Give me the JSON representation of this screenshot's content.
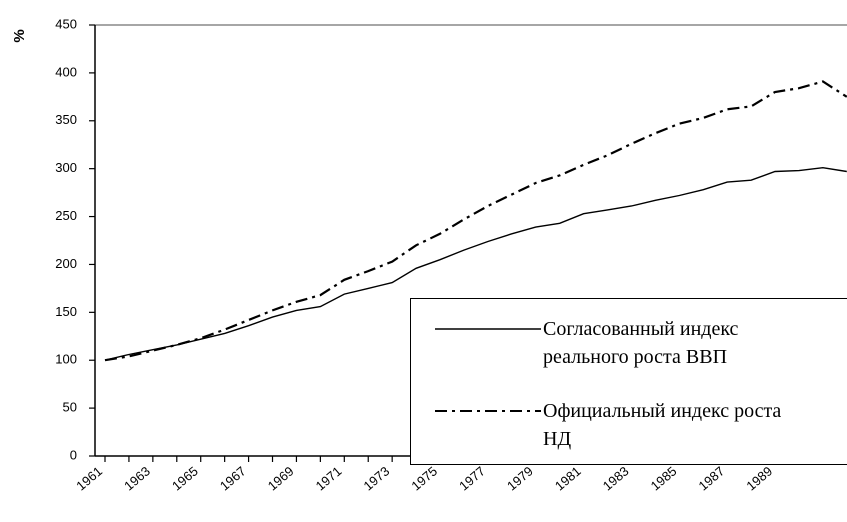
{
  "chart_data": {
    "type": "line",
    "y_label": "%",
    "categories": [
      "1961",
      null,
      "1963",
      null,
      "1965",
      null,
      "1967",
      null,
      "1969",
      null,
      "1971",
      null,
      "1973",
      null,
      "1975",
      null,
      "1977",
      null,
      "1979",
      null,
      "1981",
      null,
      "1983",
      null,
      "1985",
      null,
      "1987",
      null,
      "1989",
      null,
      null,
      null
    ],
    "series": [
      {
        "name": "Согласованный индекс реального роста ВВП",
        "color": "#000000",
        "dash": "solid",
        "values": [
          100,
          106,
          111,
          116,
          122,
          128,
          136,
          145,
          152,
          156,
          169,
          175,
          181,
          196,
          205,
          215,
          224,
          232,
          239,
          243,
          253,
          257,
          261,
          267,
          272,
          278,
          286,
          288,
          297,
          298,
          301,
          297
        ]
      },
      {
        "name": "Официальный индекс роста НД",
        "color": "#000000",
        "dash": "dashdot",
        "values": [
          100,
          104,
          110,
          116,
          123,
          132,
          142,
          152,
          161,
          168,
          184,
          193,
          203,
          220,
          232,
          247,
          261,
          273,
          285,
          293,
          304,
          314,
          326,
          337,
          347,
          353,
          362,
          365,
          380,
          384,
          391,
          375
        ]
      }
    ],
    "ylim": [
      0,
      450
    ],
    "yticks": [
      0,
      50,
      100,
      150,
      200,
      250,
      300,
      350,
      400,
      450
    ],
    "legend": "bottom-right"
  }
}
